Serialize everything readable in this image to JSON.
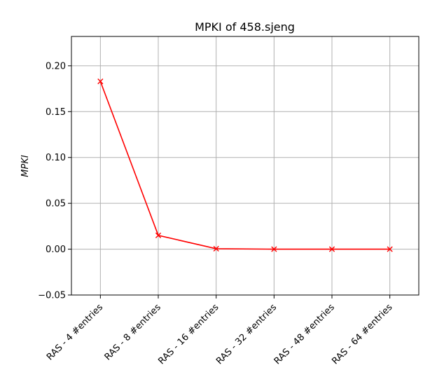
{
  "chart_data": {
    "type": "line",
    "title": "MPKI of 458.sjeng",
    "xlabel": "",
    "ylabel": "MPKI",
    "categories": [
      "RAS - 4 #entries",
      "RAS - 8 #entries",
      "RAS - 16 #entries",
      "RAS - 32 #entries",
      "RAS - 48 #entries",
      "RAS - 64 #entries"
    ],
    "series": [
      {
        "values": [
          0.183,
          0.015,
          0.0005,
          0.0,
          0.0,
          0.0
        ],
        "color": "#ff0000",
        "marker": "x"
      }
    ],
    "ylim": [
      -0.05,
      0.232
    ],
    "yticks": [
      -0.05,
      0.0,
      0.05,
      0.1,
      0.15,
      0.2
    ],
    "ytick_labels": [
      "−0.05",
      "0.00",
      "0.05",
      "0.10",
      "0.15",
      "0.20"
    ],
    "grid": true,
    "x_tick_rotation": 45
  }
}
